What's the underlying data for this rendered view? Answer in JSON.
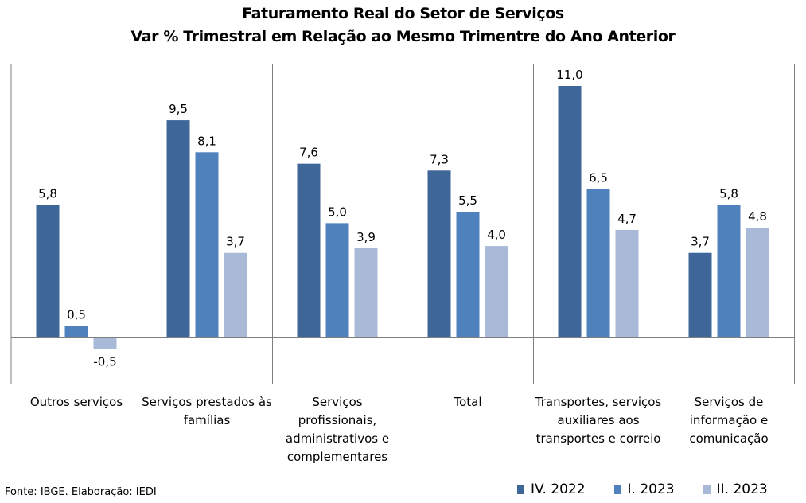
{
  "chart_data": {
    "type": "bar",
    "title": "Faturamento Real do Setor de Serviços",
    "subtitle": "Var % Trimestral em Relação ao Mesmo Trimentre do Ano Anterior",
    "categories": [
      [
        "Outros serviços"
      ],
      [
        "Serviços prestados às",
        "famílias"
      ],
      [
        "Serviços",
        "profissionais,",
        "administrativos e",
        "complementares"
      ],
      [
        "Total"
      ],
      [
        "Transportes, serviços",
        "auxiliares aos",
        "transportes e correio"
      ],
      [
        "Serviços de",
        "informação e",
        "comunicação"
      ]
    ],
    "series": [
      {
        "name": "IV. 2022",
        "color": "#3F6699",
        "values": [
          5.8,
          9.5,
          7.6,
          7.3,
          11.0,
          3.7
        ]
      },
      {
        "name": "I. 2023",
        "color": "#4F81BD",
        "values": [
          0.5,
          8.1,
          5.0,
          5.5,
          6.5,
          5.8
        ]
      },
      {
        "name": "II. 2023",
        "color": "#A9BAD9",
        "values": [
          -0.5,
          3.7,
          3.9,
          4.0,
          4.7,
          4.8
        ]
      }
    ],
    "value_labels": [
      [
        "5,8",
        "9,5",
        "7,6",
        "7,3",
        "11,0",
        "3,7"
      ],
      [
        "0,5",
        "8,1",
        "5,0",
        "5,5",
        "6,5",
        "5,8"
      ],
      [
        "-0,5",
        "3,7",
        "3,9",
        "4,0",
        "4,7",
        "4,8"
      ]
    ],
    "ylim": [
      -1.8,
      11.6
    ],
    "grid": false,
    "category_dividers": true,
    "legend_position": "bottom-right"
  },
  "footer": {
    "source": "Fonte: IBGE. Elaboração: IEDI"
  },
  "legend": {
    "items": [
      "IV. 2022",
      "I. 2023",
      "II. 2023"
    ]
  }
}
